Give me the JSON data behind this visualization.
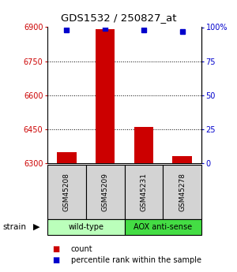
{
  "title": "GDS1532 / 250827_at",
  "samples": [
    "GSM45208",
    "GSM45209",
    "GSM45231",
    "GSM45278"
  ],
  "bar_values": [
    6350,
    6890,
    6460,
    6330
  ],
  "percentile_values": [
    98,
    99,
    98,
    97
  ],
  "ylim_left": [
    6300,
    6900
  ],
  "ylim_right": [
    0,
    100
  ],
  "yticks_left": [
    6300,
    6450,
    6600,
    6750,
    6900
  ],
  "yticks_right": [
    0,
    25,
    50,
    75,
    100
  ],
  "ytick_labels_right": [
    "0",
    "25",
    "50",
    "75",
    "100%"
  ],
  "bar_color": "#cc0000",
  "dot_color": "#0000cc",
  "dot_size": 4,
  "bar_width": 0.5,
  "groups": [
    {
      "label": "wild-type",
      "indices": [
        0,
        1
      ],
      "color": "#bbffbb"
    },
    {
      "label": "AOX anti-sense",
      "indices": [
        2,
        3
      ],
      "color": "#44dd44"
    }
  ],
  "grid_yticks": [
    6450,
    6600,
    6750
  ],
  "legend_count_color": "#cc0000",
  "legend_percentile_color": "#0000cc"
}
